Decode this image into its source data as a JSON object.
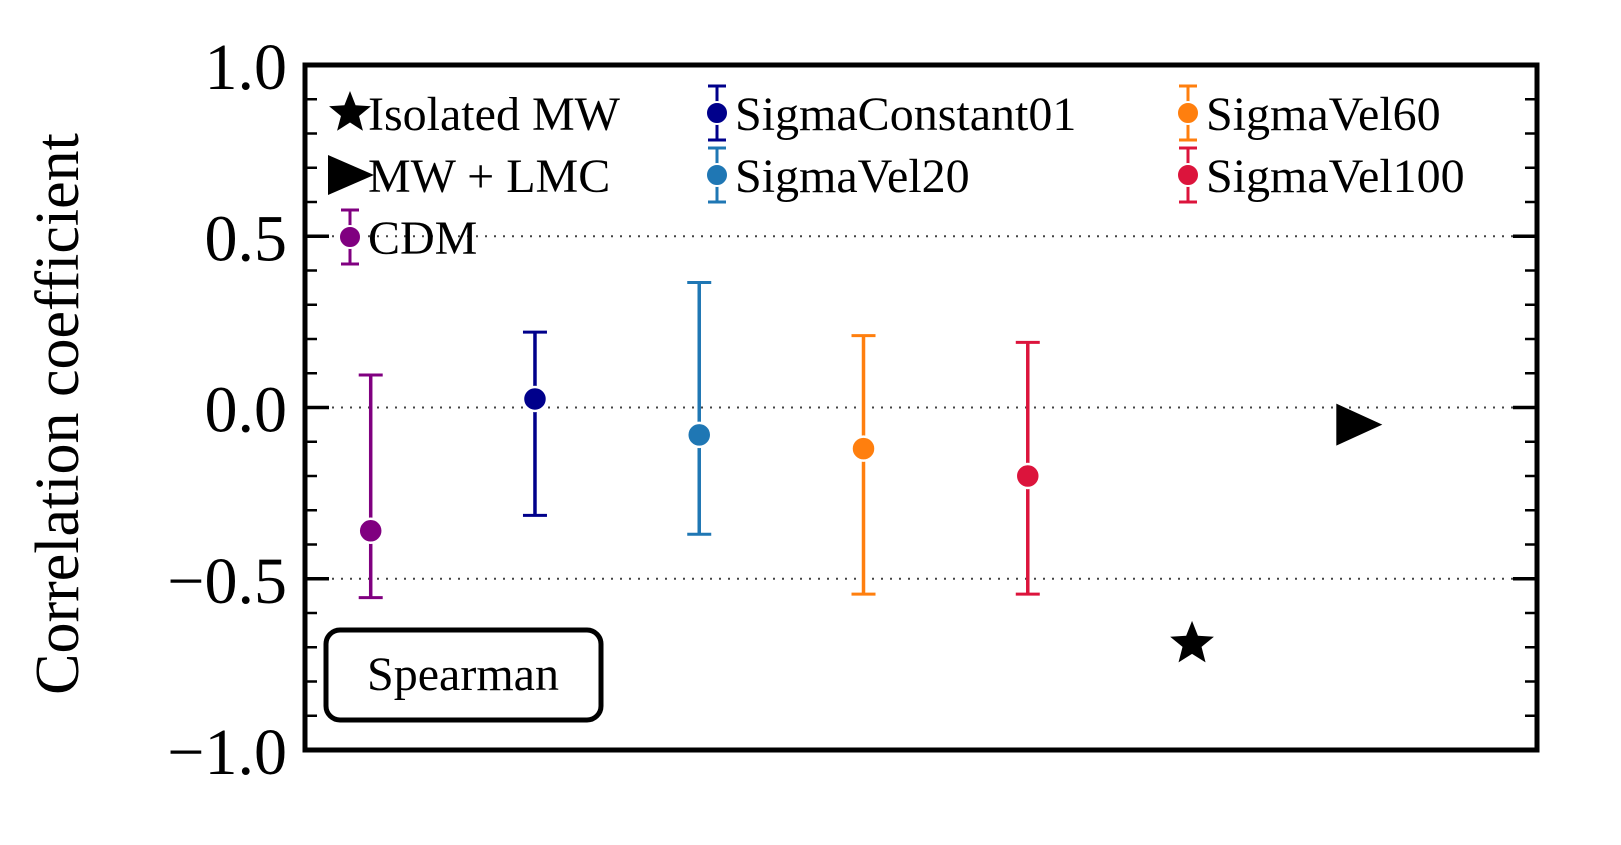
{
  "chart_data": {
    "type": "scatter",
    "title": "",
    "xlabel": "",
    "ylabel": "Correlation coefficient",
    "ylim": [
      -1.0,
      1.0
    ],
    "yticks": [
      -1.0,
      -0.5,
      0.0,
      0.5,
      1.0
    ],
    "ytick_labels": [
      "−1.0",
      "−0.5",
      "0.0",
      "0.5",
      "1.0"
    ],
    "gridlines_y": [
      -0.5,
      0.0,
      0.5
    ],
    "annotation": "Spearman",
    "series": [
      {
        "name": "CDM",
        "marker": "circle",
        "color": "#800080",
        "x": 1,
        "y": -0.36,
        "err_low": -0.555,
        "err_high": 0.095
      },
      {
        "name": "SigmaConstant01",
        "marker": "circle",
        "color": "#00008b",
        "x": 2,
        "y": 0.025,
        "err_low": -0.315,
        "err_high": 0.22
      },
      {
        "name": "SigmaVel20",
        "marker": "circle",
        "color": "#1f77b4",
        "x": 3,
        "y": -0.08,
        "err_low": -0.37,
        "err_high": 0.365
      },
      {
        "name": "SigmaVel60",
        "marker": "circle",
        "color": "#ff7f0e",
        "x": 4,
        "y": -0.12,
        "err_low": -0.545,
        "err_high": 0.21
      },
      {
        "name": "SigmaVel100",
        "marker": "circle",
        "color": "#dc143c",
        "x": 5,
        "y": -0.2,
        "err_low": -0.545,
        "err_high": 0.19
      },
      {
        "name": "Isolated MW",
        "marker": "star",
        "color": "#000000",
        "x": 6,
        "y": -0.69
      },
      {
        "name": "MW + LMC",
        "marker": "triangle-right",
        "color": "#000000",
        "x": 7,
        "y": -0.05
      }
    ],
    "legend": {
      "placement": "top",
      "entries": [
        {
          "label": "Isolated MW",
          "marker": "star",
          "color": "#000000"
        },
        {
          "label": "SigmaConstant01",
          "marker": "errorbar",
          "color": "#00008b"
        },
        {
          "label": "SigmaVel60",
          "marker": "errorbar",
          "color": "#ff7f0e"
        },
        {
          "label": "MW + LMC",
          "marker": "triangle-right",
          "color": "#000000"
        },
        {
          "label": "SigmaVel20",
          "marker": "errorbar",
          "color": "#1f77b4"
        },
        {
          "label": "SigmaVel100",
          "marker": "errorbar",
          "color": "#dc143c"
        },
        {
          "label": "CDM",
          "marker": "errorbar",
          "color": "#800080"
        }
      ]
    }
  }
}
